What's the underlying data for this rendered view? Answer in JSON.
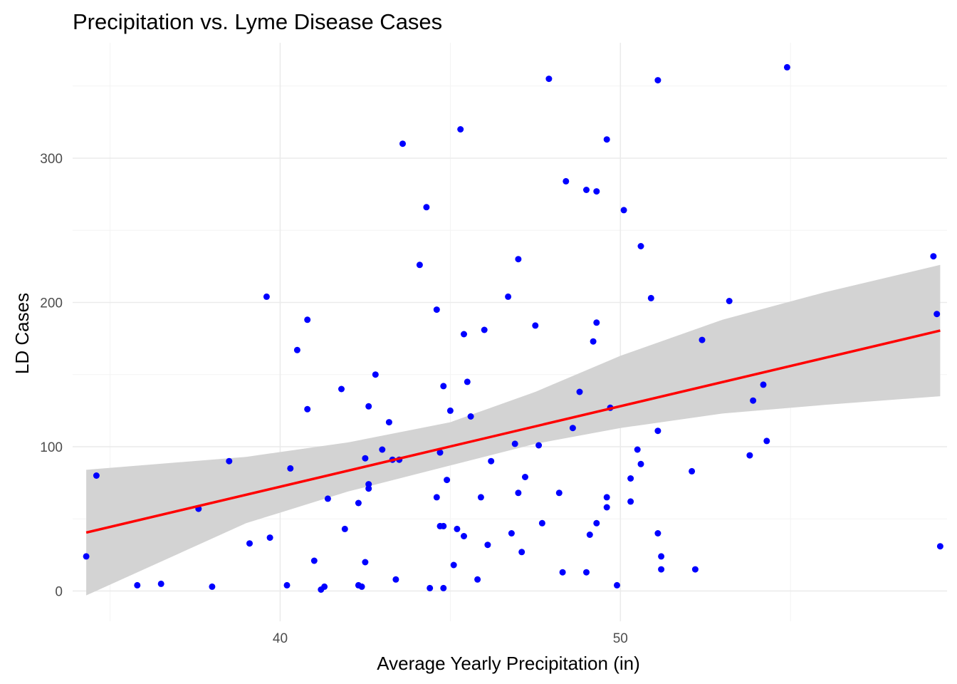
{
  "chart_data": {
    "type": "scatter",
    "title": "Precipitation vs. Lyme Disease Cases",
    "xlabel": "Average Yearly Precipitation (in)",
    "ylabel": "LD Cases",
    "xlim": [
      33.9,
      59.6
    ],
    "ylim": [
      -21,
      380
    ],
    "x_ticks": [
      40,
      50
    ],
    "y_ticks": [
      0,
      100,
      200,
      300
    ],
    "x_ticks_minor": [
      35,
      45,
      55
    ],
    "y_ticks_minor": [
      50,
      150,
      250,
      350
    ],
    "grid": true,
    "legend": "none",
    "point_color": "#0000ff",
    "line_color": "#ff0000",
    "band_color": "#d3d3d3",
    "points": [
      [
        34.3,
        24
      ],
      [
        34.6,
        80
      ],
      [
        35.8,
        4
      ],
      [
        36.5,
        5
      ],
      [
        37.6,
        57
      ],
      [
        38.0,
        3
      ],
      [
        38.5,
        90
      ],
      [
        39.1,
        33
      ],
      [
        39.6,
        204
      ],
      [
        39.7,
        37
      ],
      [
        40.2,
        4
      ],
      [
        40.3,
        85
      ],
      [
        40.5,
        167
      ],
      [
        40.8,
        126
      ],
      [
        40.8,
        188
      ],
      [
        41.0,
        21
      ],
      [
        41.2,
        1
      ],
      [
        41.3,
        3
      ],
      [
        41.4,
        64
      ],
      [
        41.8,
        140
      ],
      [
        41.9,
        43
      ],
      [
        42.3,
        4
      ],
      [
        42.4,
        3
      ],
      [
        42.3,
        61
      ],
      [
        42.5,
        20
      ],
      [
        42.5,
        92
      ],
      [
        42.6,
        128
      ],
      [
        42.6,
        74
      ],
      [
        42.6,
        71
      ],
      [
        42.8,
        150
      ],
      [
        43.0,
        98
      ],
      [
        43.2,
        117
      ],
      [
        43.3,
        91
      ],
      [
        43.5,
        91
      ],
      [
        43.4,
        8
      ],
      [
        43.6,
        310
      ],
      [
        44.1,
        226
      ],
      [
        44.3,
        266
      ],
      [
        44.4,
        2
      ],
      [
        44.6,
        195
      ],
      [
        44.6,
        65
      ],
      [
        44.7,
        45
      ],
      [
        44.8,
        45
      ],
      [
        44.7,
        96
      ],
      [
        44.8,
        142
      ],
      [
        44.8,
        2
      ],
      [
        44.9,
        77
      ],
      [
        45.0,
        125
      ],
      [
        45.1,
        18
      ],
      [
        45.2,
        43
      ],
      [
        45.3,
        320
      ],
      [
        45.4,
        178
      ],
      [
        45.4,
        38
      ],
      [
        45.5,
        145
      ],
      [
        45.6,
        121
      ],
      [
        45.8,
        8
      ],
      [
        45.9,
        65
      ],
      [
        46.0,
        181
      ],
      [
        46.1,
        32
      ],
      [
        46.2,
        90
      ],
      [
        46.7,
        204
      ],
      [
        46.8,
        40
      ],
      [
        46.9,
        102
      ],
      [
        47.0,
        68
      ],
      [
        47.0,
        230
      ],
      [
        47.1,
        27
      ],
      [
        47.2,
        79
      ],
      [
        47.5,
        184
      ],
      [
        47.6,
        101
      ],
      [
        47.7,
        47
      ],
      [
        47.9,
        355
      ],
      [
        48.2,
        68
      ],
      [
        48.3,
        13
      ],
      [
        48.4,
        284
      ],
      [
        48.6,
        113
      ],
      [
        48.8,
        138
      ],
      [
        49.0,
        278
      ],
      [
        49.0,
        13
      ],
      [
        49.1,
        39
      ],
      [
        49.2,
        173
      ],
      [
        49.3,
        277
      ],
      [
        49.3,
        186
      ],
      [
        49.3,
        47
      ],
      [
        49.6,
        313
      ],
      [
        49.6,
        65
      ],
      [
        49.6,
        58
      ],
      [
        49.7,
        127
      ],
      [
        49.9,
        4
      ],
      [
        50.1,
        264
      ],
      [
        50.3,
        62
      ],
      [
        50.3,
        78
      ],
      [
        50.5,
        98
      ],
      [
        50.6,
        239
      ],
      [
        50.6,
        88
      ],
      [
        50.9,
        203
      ],
      [
        51.1,
        111
      ],
      [
        51.1,
        354
      ],
      [
        51.1,
        40
      ],
      [
        51.2,
        24
      ],
      [
        51.2,
        15
      ],
      [
        52.1,
        83
      ],
      [
        52.2,
        15
      ],
      [
        52.4,
        174
      ],
      [
        53.2,
        201
      ],
      [
        53.8,
        94
      ],
      [
        53.9,
        132
      ],
      [
        54.2,
        143
      ],
      [
        54.3,
        104
      ],
      [
        54.9,
        363
      ],
      [
        59.2,
        232
      ],
      [
        59.3,
        192
      ],
      [
        59.4,
        31
      ]
    ],
    "fit": {
      "x": [
        34.3,
        59.4
      ],
      "y": [
        40.5,
        180.5
      ],
      "band": {
        "x": [
          34.3,
          39.0,
          42.0,
          45.0,
          47.5,
          50.0,
          53.0,
          56.0,
          59.4
        ],
        "lower": [
          -3,
          47,
          69,
          87,
          102,
          113,
          123,
          129,
          135
        ],
        "upper": [
          84,
          93,
          103,
          117,
          138,
          163,
          188,
          207,
          226
        ]
      }
    }
  }
}
